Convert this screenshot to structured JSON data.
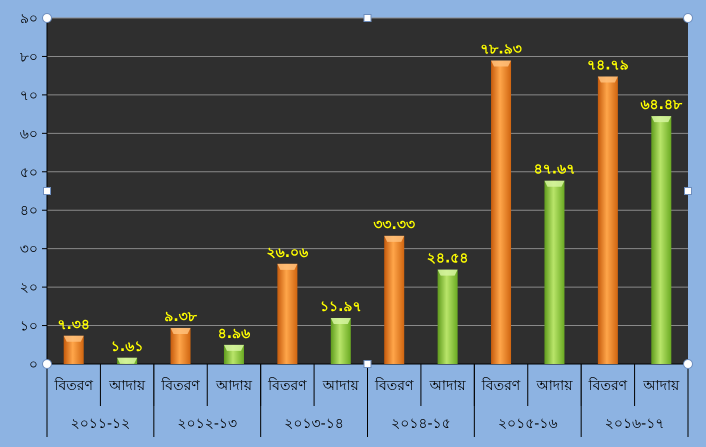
{
  "chart_data": {
    "type": "bar",
    "title": "",
    "xlabel": "",
    "ylabel": "",
    "ylim": [
      0,
      90
    ],
    "yticks": [
      0,
      10,
      20,
      30,
      40,
      50,
      60,
      70,
      80,
      90
    ],
    "ytick_labels": [
      "০",
      "১০",
      "২০",
      "৩০",
      "৪০",
      "৫০",
      "৬০",
      "৭০",
      "৮০",
      "৯০"
    ],
    "grid": true,
    "legend": "none",
    "background_color": "#2f2f2f",
    "frame_color": "#8db3e2",
    "groups": [
      "২০১১-১২",
      "২০১২-১৩",
      "২০১৩-১৪",
      "২০১৪-১৫",
      "২০১৫-১৬",
      "২০১৬-১৭"
    ],
    "categories": [
      {
        "group": "২০১১-১২",
        "label": "বিতরণ",
        "value": 7.34,
        "value_label": "৭.৩৪",
        "color": "#f28a1e"
      },
      {
        "group": "২০১১-১২",
        "label": "আদায়",
        "value": 1.61,
        "value_label": "১.৬১",
        "color": "#8fcc3d"
      },
      {
        "group": "২০১২-১৩",
        "label": "বিতরণ",
        "value": 9.38,
        "value_label": "৯.৩৮",
        "color": "#f28a1e"
      },
      {
        "group": "২০১২-১৩",
        "label": "আদায়",
        "value": 4.96,
        "value_label": "৪.৯৬",
        "color": "#8fcc3d"
      },
      {
        "group": "২০১৩-১৪",
        "label": "বিতরণ",
        "value": 26.06,
        "value_label": "২৬.০৬",
        "color": "#f28a1e"
      },
      {
        "group": "২০১৩-১৪",
        "label": "আদায়",
        "value": 11.97,
        "value_label": "১১.৯৭",
        "color": "#8fcc3d"
      },
      {
        "group": "২০১৪-১৫",
        "label": "বিতরণ",
        "value": 33.33,
        "value_label": "৩৩.৩৩",
        "color": "#f28a1e"
      },
      {
        "group": "২০১৪-১৫",
        "label": "আদায়",
        "value": 24.54,
        "value_label": "২৪.৫৪",
        "color": "#8fcc3d"
      },
      {
        "group": "২০১৫-১৬",
        "label": "বিতরণ",
        "value": 78.93,
        "value_label": "৭৮.৯৩",
        "color": "#f28a1e"
      },
      {
        "group": "২০১৫-১৬",
        "label": "আদায়",
        "value": 47.67,
        "value_label": "৪৭.৬৭",
        "color": "#8fcc3d"
      },
      {
        "group": "২০১৬-১৭",
        "label": "বিতরণ",
        "value": 74.79,
        "value_label": "৭৪.৭৯",
        "color": "#f28a1e"
      },
      {
        "group": "২০১৬-১৭",
        "label": "আদায়",
        "value": 64.48,
        "value_label": "৬৪.৪৮",
        "color": "#8fcc3d"
      }
    ],
    "data_label_color": "#ffff00"
  }
}
